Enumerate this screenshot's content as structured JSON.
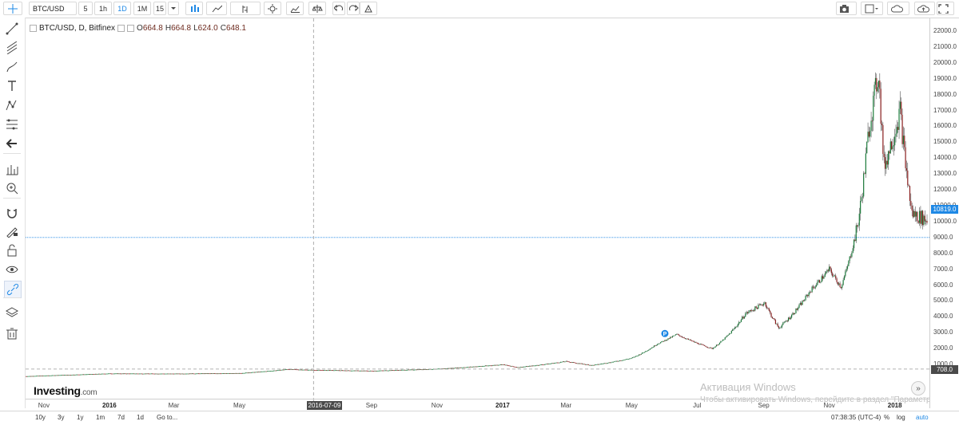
{
  "toolbar": {
    "symbol": "BTC/USD",
    "intervals": [
      {
        "label": "5",
        "active": false
      },
      {
        "label": "1h",
        "active": false
      },
      {
        "label": "1D",
        "active": true
      },
      {
        "label": "1M",
        "active": false
      },
      {
        "label": "15",
        "active": false
      }
    ],
    "icons": [
      "chart-type-icon",
      "indicators-icon",
      "compare-icon",
      "settings-icon",
      "studies-icon",
      "scales-icon",
      "undo-icon",
      "redo-icon",
      "alert-icon"
    ],
    "right_icons": [
      "camera-icon",
      "layout-icon",
      "cloud-load-icon",
      "cloud-save-icon",
      "fullscreen-icon"
    ]
  },
  "left_toolbar": {
    "icons": [
      "crosshair-icon",
      "trend-line-icon",
      "pitchfork-icon",
      "brush-icon",
      "text-icon",
      "pattern-icon",
      "fibonacci-icon",
      "back-arrow-icon",
      "measure-icon",
      "zoom-in-icon",
      "magnet-icon",
      "lock-drawing-icon",
      "lock-icon",
      "eye-icon",
      "link-icon",
      "layers-icon",
      "trash-icon"
    ]
  },
  "legend": {
    "title": "BTC/USD, D, Bitfinex",
    "open_label": "O",
    "open": "664.8",
    "high_label": "H",
    "high": "664.8",
    "low_label": "L",
    "low": "624.0",
    "close_label": "C",
    "close": "648.1"
  },
  "price_axis": {
    "labels": [
      "22000.0",
      "21000.0",
      "20000.0",
      "19000.0",
      "18000.0",
      "17000.0",
      "16000.0",
      "15000.0",
      "14000.0",
      "13000.0",
      "12000.0",
      "11000.0",
      "10000.0",
      "9000.0",
      "8000.0",
      "7000.0",
      "6000.0",
      "5000.0",
      "4000.0",
      "3000.0",
      "2000.0",
      "1000.0"
    ],
    "current_price": "10819.0",
    "cursor_price": "708.0",
    "colors": {
      "current_tag": "#1e88e5",
      "cursor_tag": "#4a4a4a"
    }
  },
  "time_axis": {
    "labels": [
      {
        "text": "Nov",
        "bold": false
      },
      {
        "text": "2016",
        "bold": true
      },
      {
        "text": "Mar",
        "bold": false
      },
      {
        "text": "May",
        "bold": false
      },
      {
        "text": "Sep",
        "bold": false
      },
      {
        "text": "Nov",
        "bold": false
      },
      {
        "text": "2017",
        "bold": true
      },
      {
        "text": "Mar",
        "bold": false
      },
      {
        "text": "May",
        "bold": false
      },
      {
        "text": "Jul",
        "bold": false
      },
      {
        "text": "Sep",
        "bold": false
      },
      {
        "text": "Nov",
        "bold": false
      },
      {
        "text": "2018",
        "bold": true
      }
    ],
    "cursor_date": "2016-07-09"
  },
  "bottom_bar": {
    "ranges": [
      "10y",
      "3y",
      "1y",
      "1m",
      "7d",
      "1d"
    ],
    "goto": "Go to...",
    "clock": "07:38:35 (UTC-4)",
    "percent": "%",
    "log": "log",
    "auto": "auto"
  },
  "branding": {
    "logo_main": "Investing",
    "logo_suffix": ".com"
  },
  "marker_label": "P",
  "scroll_button": "»",
  "watermark": {
    "line1": "Активация Windows",
    "line2": "Чтобы активировать Windows, перейдите в раздел \"Параметры\"."
  },
  "chart_data": {
    "type": "candlestick",
    "symbol": "BTC/USD",
    "interval": "D",
    "exchange": "Bitfinex",
    "ylim": [
      0,
      22500
    ],
    "x_start": "2015-10-15",
    "x_end": "2018-01-31",
    "series_points": [
      [
        "2015-10-15",
        260
      ],
      [
        "2015-11-15",
        330
      ],
      [
        "2016-01-01",
        430
      ],
      [
        "2016-03-01",
        420
      ],
      [
        "2016-05-01",
        450
      ],
      [
        "2016-06-15",
        700
      ],
      [
        "2016-07-09",
        650
      ],
      [
        "2016-09-01",
        600
      ],
      [
        "2016-11-01",
        720
      ],
      [
        "2017-01-01",
        1000
      ],
      [
        "2017-01-15",
        820
      ],
      [
        "2017-03-01",
        1200
      ],
      [
        "2017-03-25",
        950
      ],
      [
        "2017-05-01",
        1400
      ],
      [
        "2017-05-25",
        2300
      ],
      [
        "2017-06-12",
        2900
      ],
      [
        "2017-07-15",
        2000
      ],
      [
        "2017-08-15",
        4200
      ],
      [
        "2017-09-02",
        4900
      ],
      [
        "2017-09-15",
        3300
      ],
      [
        "2017-10-15",
        5700
      ],
      [
        "2017-11-01",
        7000
      ],
      [
        "2017-11-12",
        5900
      ],
      [
        "2017-11-28",
        10000
      ],
      [
        "2017-12-08",
        16000
      ],
      [
        "2017-12-17",
        19500
      ],
      [
        "2017-12-22",
        13500
      ],
      [
        "2018-01-06",
        17000
      ],
      [
        "2018-01-17",
        10500
      ],
      [
        "2018-01-31",
        10100
      ]
    ],
    "horizontal_line": 9000,
    "crosshair_date": "2016-07-09",
    "crosshair_price": 708
  }
}
